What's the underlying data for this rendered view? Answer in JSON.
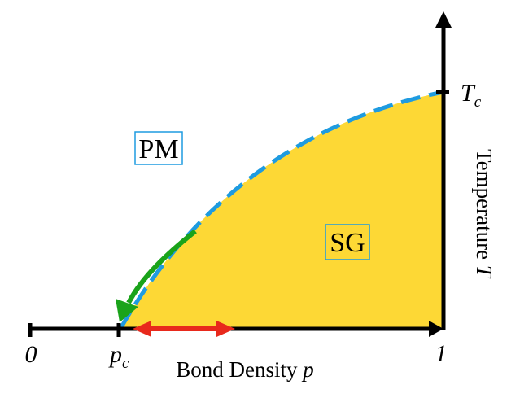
{
  "colors": {
    "sg_region": "#FDD835",
    "boundary": "#1E9BE0",
    "green_arrow": "#1AA31A",
    "red_arrow": "#E8291C",
    "axis": "#000000",
    "box_border": "#1E9BE0"
  },
  "regions": {
    "pm": "PM",
    "sg": "SG"
  },
  "x_axis": {
    "label_main": "Bond Density ",
    "label_var": "p",
    "tick_zero": "0",
    "tick_pc_main": "p",
    "tick_pc_sub": "c",
    "tick_one": "1"
  },
  "y_axis": {
    "label_main": "Temperature ",
    "label_var": "T",
    "tick_tc_main": "T",
    "tick_tc_sub": "c"
  },
  "icons": {
    "green_arrow": "curved-arrow-down-left",
    "red_arrow": "double-headed-arrow"
  }
}
